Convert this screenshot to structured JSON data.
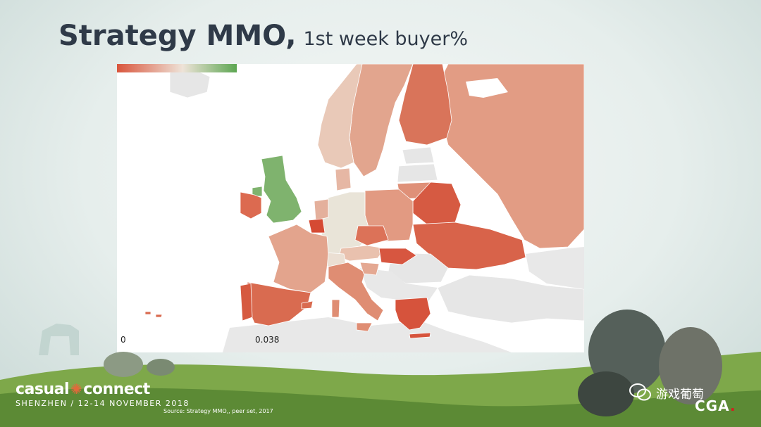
{
  "slide": {
    "title_main": "Strategy MMO,",
    "title_sub": "1st week buyer%",
    "source": "Source: Strategy MMO,, peer set, 2017"
  },
  "legend": {
    "min_label": "0",
    "max_label": "0.038",
    "min_value": 0,
    "max_value": 0.038,
    "low_color": "#d9553c",
    "mid_color": "#eee3d8",
    "high_color": "#5ca651"
  },
  "map": {
    "type": "choropleth",
    "region": "Europe",
    "countries": [
      {
        "name": "United Kingdom",
        "value": 0.03,
        "color": "#7fb36e"
      },
      {
        "name": "Ireland",
        "value": 0.006,
        "color": "#dc6a50"
      },
      {
        "name": "Iceland",
        "value": null,
        "color": "#e6e6e6"
      },
      {
        "name": "Norway",
        "value": 0.016,
        "color": "#e9c9b8"
      },
      {
        "name": "Sweden",
        "value": 0.011,
        "color": "#e2a58e"
      },
      {
        "name": "Finland",
        "value": 0.007,
        "color": "#d9745a"
      },
      {
        "name": "Denmark",
        "value": 0.013,
        "color": "#e6b7a4"
      },
      {
        "name": "Germany",
        "value": 0.019,
        "color": "#e9e4d8"
      },
      {
        "name": "Netherlands",
        "value": 0.012,
        "color": "#e4b09c"
      },
      {
        "name": "Belgium",
        "value": 0.003,
        "color": "#d54a33"
      },
      {
        "name": "France",
        "value": 0.011,
        "color": "#e3a48d"
      },
      {
        "name": "Spain",
        "value": 0.006,
        "color": "#d96b50"
      },
      {
        "name": "Portugal",
        "value": 0.004,
        "color": "#d65a40"
      },
      {
        "name": "Italy",
        "value": 0.009,
        "color": "#df8d73"
      },
      {
        "name": "Switzerland",
        "value": 0.018,
        "color": "#ebdfd3"
      },
      {
        "name": "Austria",
        "value": 0.014,
        "color": "#e9c1ae"
      },
      {
        "name": "Czech Republic",
        "value": 0.007,
        "color": "#dc7258"
      },
      {
        "name": "Poland",
        "value": 0.01,
        "color": "#e29a82"
      },
      {
        "name": "Hungary",
        "value": 0.004,
        "color": "#d75640"
      },
      {
        "name": "Belarus",
        "value": 0.004,
        "color": "#d65a42"
      },
      {
        "name": "Ukraine",
        "value": 0.005,
        "color": "#d8634a"
      },
      {
        "name": "Russia",
        "value": 0.01,
        "color": "#e29c84"
      },
      {
        "name": "Estonia",
        "value": null,
        "color": "#e6e6e6"
      },
      {
        "name": "Latvia",
        "value": null,
        "color": "#e6e6e6"
      },
      {
        "name": "Lithuania",
        "value": 0.009,
        "color": "#df9078"
      },
      {
        "name": "Greece",
        "value": 0.004,
        "color": "#d6533c"
      },
      {
        "name": "Croatia",
        "value": 0.011,
        "color": "#e4a892"
      },
      {
        "name": "Romania",
        "value": null,
        "color": "#e6e6e6"
      },
      {
        "name": "Turkey",
        "value": null,
        "color": "#e6e6e6"
      }
    ]
  }
}
